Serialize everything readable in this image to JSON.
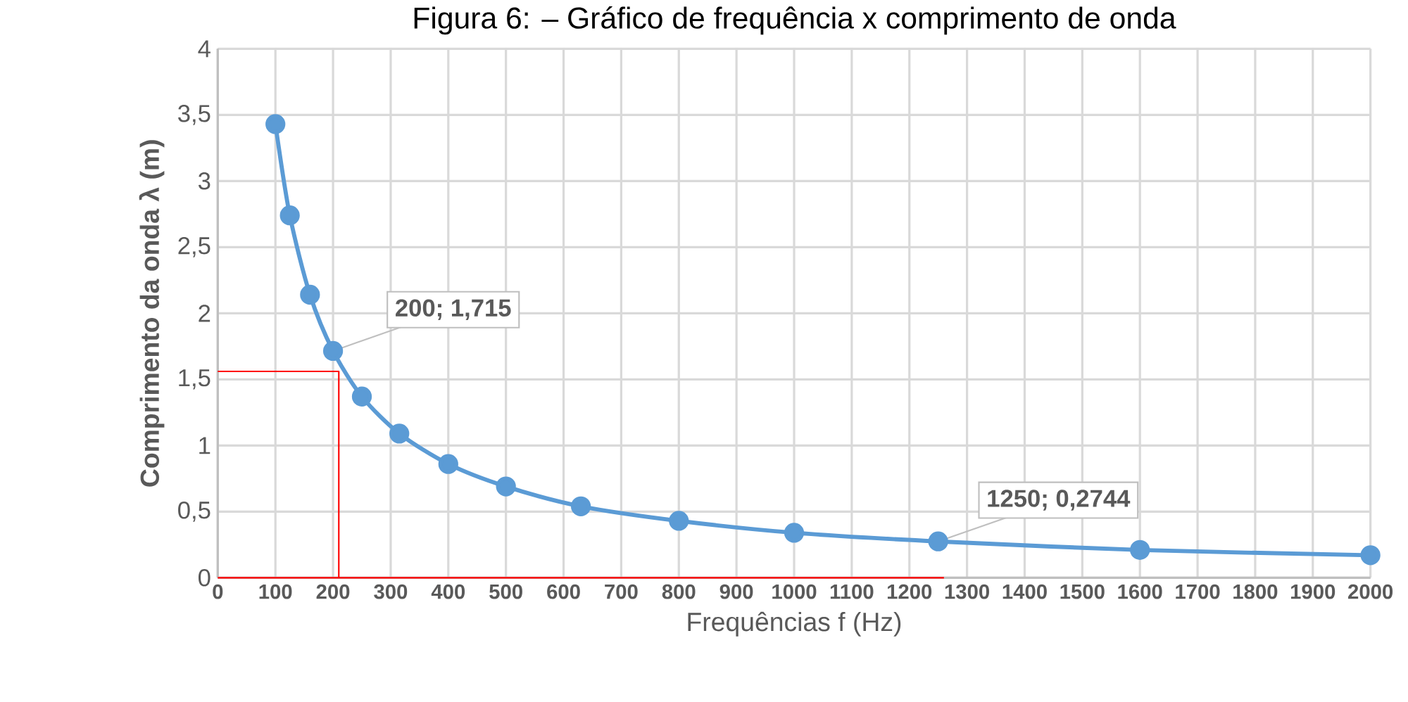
{
  "chart_data": {
    "type": "line",
    "title": "Figura 6: – Gráfico de frequência x comprimento de onda",
    "xlabel": "Frequências f (Hz)",
    "ylabel": "Comprimento da onda λ (m)",
    "x": [
      100,
      125,
      160,
      200,
      250,
      315,
      400,
      500,
      630,
      800,
      1000,
      1250,
      1600,
      2000
    ],
    "series": [
      {
        "color": "#5b9bd5",
        "marker": "circle",
        "values": [
          3.43,
          2.74,
          2.14,
          1.715,
          1.37,
          1.09,
          0.86,
          0.69,
          0.54,
          0.43,
          0.34,
          0.2744,
          0.21,
          0.17
        ]
      },
      {
        "color": "#ff0000",
        "marker": "none",
        "x": [
          0,
          210,
          210
        ],
        "values": [
          1.56,
          1.56,
          0
        ]
      },
      {
        "color": "#ff0000",
        "marker": "none",
        "x": [
          0,
          1260,
          1260
        ],
        "values": [
          0,
          0,
          0
        ]
      }
    ],
    "xlim": [
      0,
      2000
    ],
    "xticks": [
      0,
      100,
      200,
      300,
      400,
      500,
      600,
      700,
      800,
      900,
      1000,
      1100,
      1200,
      1300,
      1400,
      1500,
      1600,
      1700,
      1800,
      1900,
      2000
    ],
    "ylim": [
      0,
      4
    ],
    "yticks": [
      0,
      {
        "value": 0.5,
        "label": "0,5"
      },
      1,
      {
        "value": 1.5,
        "label": "1,5"
      },
      2,
      {
        "value": 2.5,
        "label": "2,5"
      },
      3,
      {
        "value": 3.5,
        "label": "3,5"
      },
      4
    ],
    "grid": true,
    "annotations": [
      {
        "text": "200; 1,715",
        "x": 200,
        "y": 1.715
      },
      {
        "text": "1250; 0,2744",
        "x": 1250,
        "y": 0.2744
      }
    ]
  }
}
